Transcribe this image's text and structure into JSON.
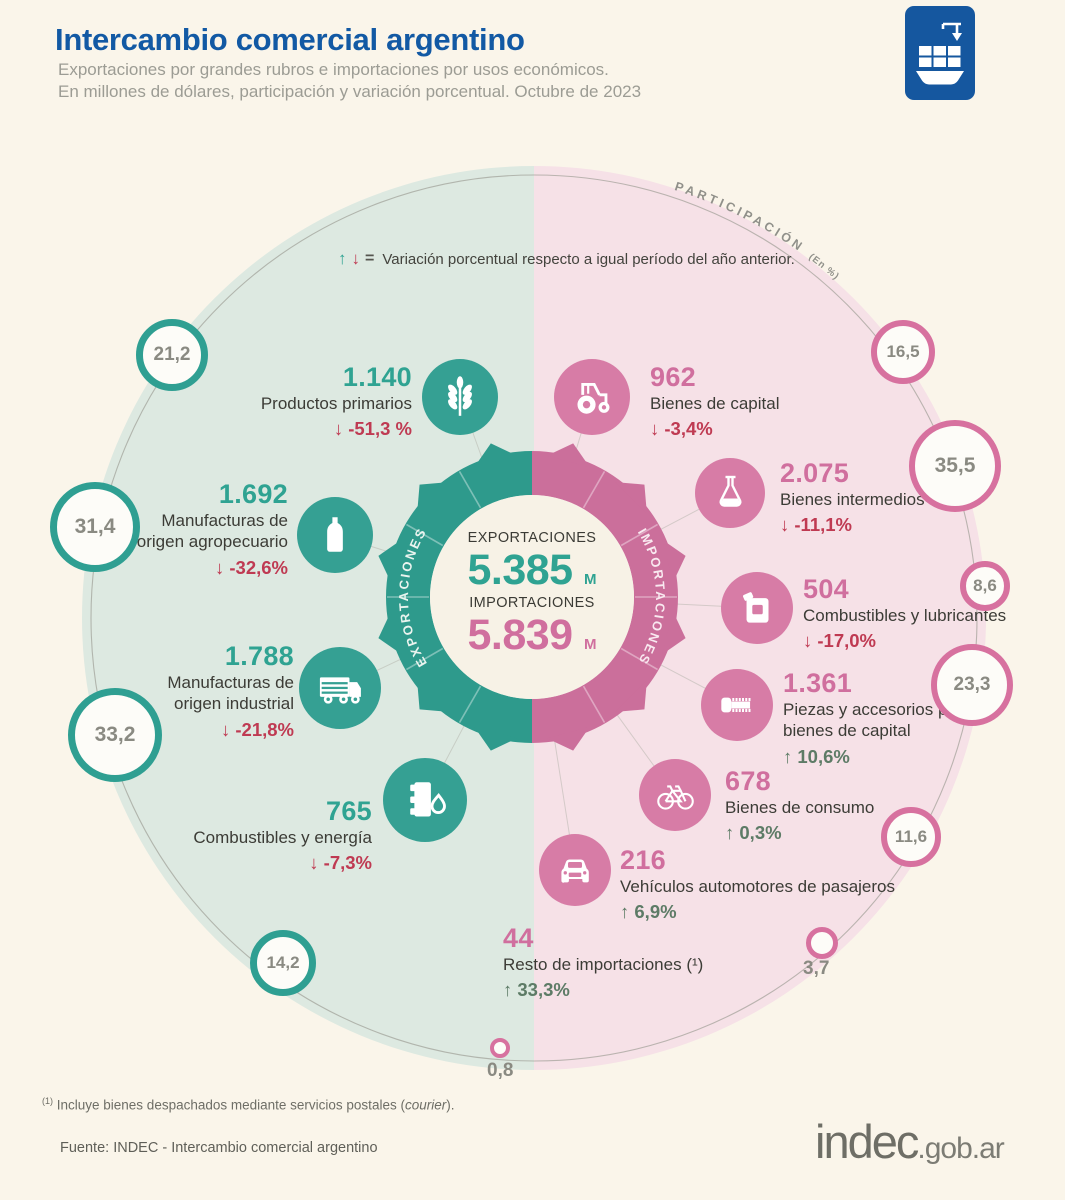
{
  "header": {
    "title": "Intercambio comercial argentino",
    "subtitle1": "Exportaciones por grandes rubros e importaciones por usos económicos.",
    "subtitle2": "En millones de dólares, participación y variación porcentual. Octubre de 2023"
  },
  "legend": {
    "up": "↑",
    "down": "↓",
    "eq": "=",
    "text": "Variación porcentual respecto a igual período del año anterior."
  },
  "arc": {
    "label": "PARTICIPACIÓN",
    "sub": "(En %)"
  },
  "hub": {
    "ring_left": "EXPORTACIONES",
    "ring_right": "IMPORTACIONES",
    "exports_label": "EXPORTACIONES",
    "exports_value": "5.385",
    "imports_label": "IMPORTACIONES",
    "imports_value": "5.839",
    "unit": "M"
  },
  "exports": {
    "items": [
      {
        "value": "1.140",
        "label": "Productos primarios",
        "arrow": "↓",
        "change": "-51,3 %",
        "share": "21,2",
        "icon": "wheat"
      },
      {
        "value": "1.692",
        "label1": "Manufacturas de",
        "label2": "origen agropecuario",
        "arrow": "↓",
        "change": "-32,6%",
        "share": "31,4",
        "icon": "bottle"
      },
      {
        "value": "1.788",
        "label1": "Manufacturas de",
        "label2": "origen industrial",
        "arrow": "↓",
        "change": "-21,8%",
        "share": "33,2",
        "icon": "truck"
      },
      {
        "value": "765",
        "label": "Combustibles y energía",
        "arrow": "↓",
        "change": "-7,3%",
        "share": "14,2",
        "icon": "oil-barrel"
      }
    ]
  },
  "imports": {
    "items": [
      {
        "value": "962",
        "label": "Bienes de capital",
        "arrow": "↓",
        "change": "-3,4%",
        "share": "16,5",
        "icon": "tractor"
      },
      {
        "value": "2.075",
        "label": "Bienes intermedios",
        "arrow": "↓",
        "change": "-11,1%",
        "share": "35,5",
        "icon": "flask"
      },
      {
        "value": "504",
        "label": "Combustibles y lubricantes",
        "arrow": "↓",
        "change": "-17,0%",
        "share": "8,6",
        "icon": "jerrycan"
      },
      {
        "value": "1.361",
        "label1": "Piezas y accesorios para",
        "label2": "bienes de capital",
        "arrow": "↑",
        "change": "10,6%",
        "share": "23,3",
        "icon": "screw"
      },
      {
        "value": "678",
        "label": "Bienes de consumo",
        "arrow": "↑",
        "change": "0,3%",
        "share": "11,6",
        "icon": "bicycle"
      },
      {
        "value": "216",
        "label": "Vehículos automotores de pasajeros",
        "arrow": "↑",
        "change": "6,9%",
        "share": "3,7",
        "icon": "car"
      },
      {
        "value": "44",
        "label": "Resto de importaciones (¹)",
        "arrow": "↑",
        "change": "33,3%",
        "share": "0,8",
        "icon": null
      }
    ]
  },
  "footnote": {
    "marker": "(1)",
    "before": " Incluye bienes despachados mediante servicios postales (",
    "italic": "courier",
    "after": ")."
  },
  "source": "Fuente: INDEC  - Intercambio comercial argentino",
  "brand": {
    "name": "indec",
    "suffix": ".gob.ar"
  },
  "colors": {
    "export_teal": "#2fa392",
    "import_pink": "#d06f9e",
    "negative_red": "#bf3a52",
    "positive_green": "#5d7b66",
    "title_blue": "#1259a4",
    "disc_green": "#dde9e1",
    "disc_pink": "#f6e1e7"
  },
  "chart_data": [
    {
      "type": "pie",
      "title": "Exportaciones por grandes rubros, millones de dólares, Octubre de 2023",
      "categories": [
        "Productos primarios",
        "Manufacturas de origen agropecuario",
        "Manufacturas de origen industrial",
        "Combustibles y energía"
      ],
      "values": [
        1140,
        1692,
        1788,
        765
      ],
      "shares_pct": [
        21.2,
        31.4,
        33.2,
        14.2
      ],
      "yoy_change_pct": [
        -51.3,
        -32.6,
        -21.8,
        -7.3
      ],
      "total_label": "EXPORTACIONES",
      "total_value_musd": 5385
    },
    {
      "type": "pie",
      "title": "Importaciones por usos económicos, millones de dólares, Octubre de 2023",
      "categories": [
        "Bienes de capital",
        "Bienes intermedios",
        "Combustibles y lubricantes",
        "Piezas y accesorios para bienes de capital",
        "Bienes de consumo",
        "Vehículos automotores de pasajeros",
        "Resto de importaciones"
      ],
      "values": [
        962,
        2075,
        504,
        1361,
        678,
        216,
        44
      ],
      "shares_pct": [
        16.5,
        35.5,
        8.6,
        23.3,
        11.6,
        3.7,
        0.8
      ],
      "yoy_change_pct": [
        -3.4,
        -11.1,
        -17.0,
        10.6,
        0.3,
        6.9,
        33.3
      ],
      "total_label": "IMPORTACIONES",
      "total_value_musd": 5839
    }
  ]
}
